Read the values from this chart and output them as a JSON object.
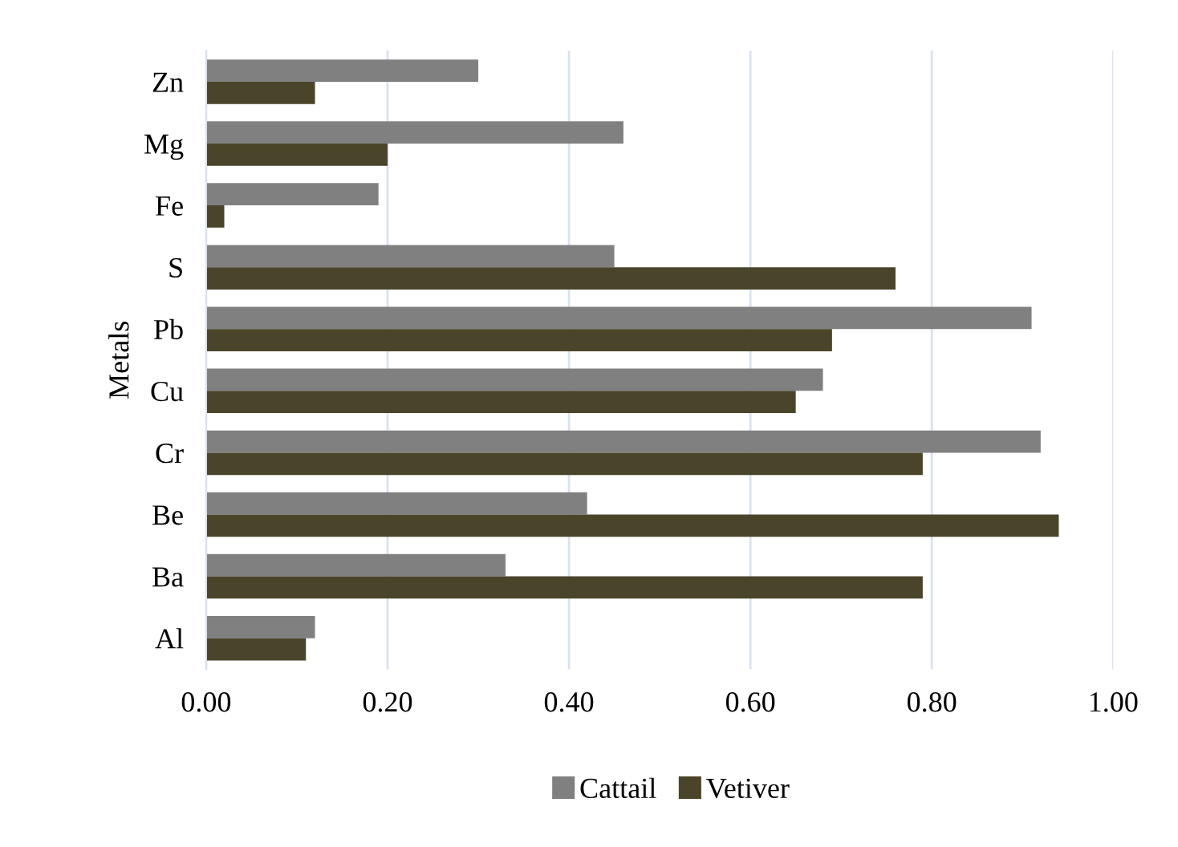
{
  "chart_data": {
    "type": "bar",
    "orientation": "horizontal",
    "ylabel": "Metals",
    "categories": [
      "Zn",
      "Mg",
      "Fe",
      "S",
      "Pb",
      "Cu",
      "Cr",
      "Be",
      "Ba",
      "Al"
    ],
    "series": [
      {
        "name": "Cattail",
        "color": "#808080",
        "values": [
          0.3,
          0.46,
          0.19,
          0.45,
          0.91,
          0.68,
          0.92,
          0.42,
          0.33,
          0.12
        ]
      },
      {
        "name": "Vetiver",
        "color": "#4a442a",
        "values": [
          0.12,
          0.2,
          0.02,
          0.76,
          0.69,
          0.65,
          0.79,
          0.94,
          0.79,
          0.11
        ]
      }
    ],
    "xlim": [
      0,
      1.0
    ],
    "xticks": [
      {
        "value": 0,
        "label": "0.00"
      },
      {
        "value": 0.2,
        "label": "0.20"
      },
      {
        "value": 0.4,
        "label": "0.40"
      },
      {
        "value": 0.6,
        "label": "0.60"
      },
      {
        "value": 0.8,
        "label": "0.80"
      },
      {
        "value": 1.0,
        "label": "1.00"
      }
    ],
    "grid": "x",
    "legend": "bottom"
  }
}
